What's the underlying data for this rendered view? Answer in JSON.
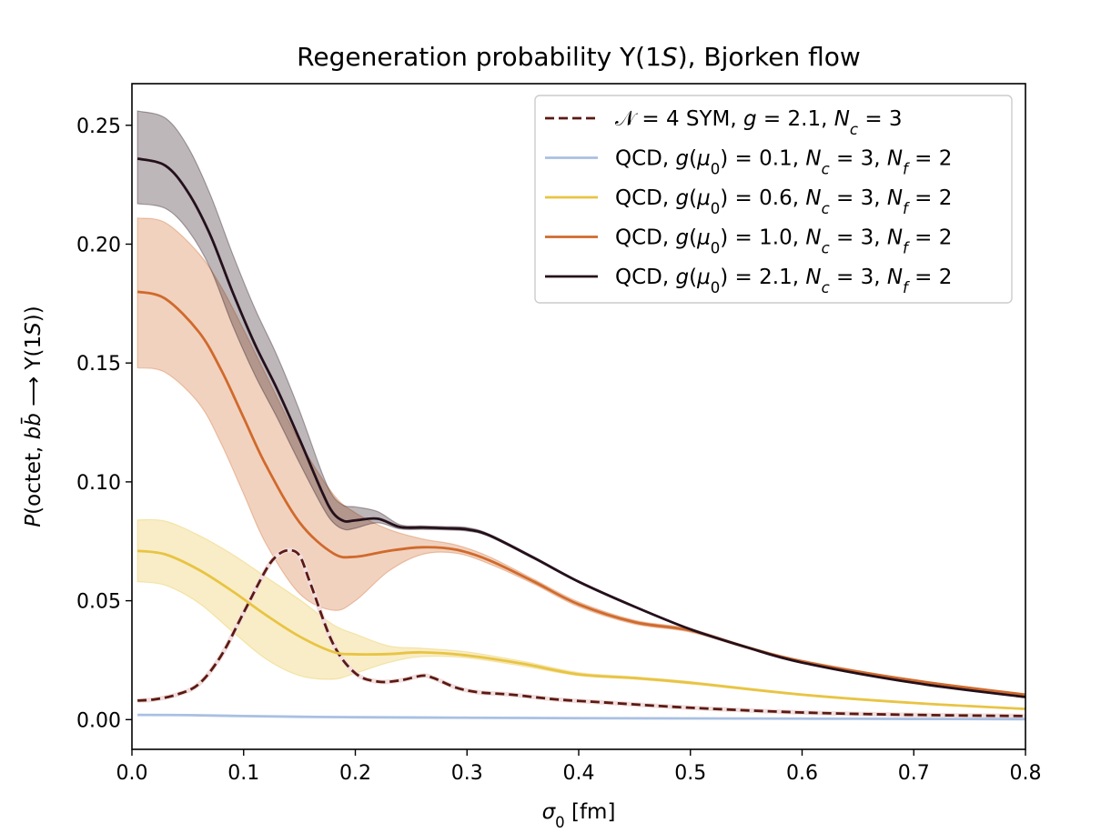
{
  "chart_data": {
    "type": "line",
    "title": "Regeneration probability Υ(1S), Bjorken flow",
    "title_runs": [
      {
        "t": "Regeneration probability Υ(1",
        "i": false
      },
      {
        "t": "S",
        "i": true
      },
      {
        "t": "), Bjorken flow",
        "i": false
      }
    ],
    "xlabel": "σ₀ [fm]",
    "xlabel_runs": [
      {
        "t": "σ",
        "i": true
      },
      {
        "t": "0",
        "i": false,
        "sub": true
      },
      {
        "t": " [fm]",
        "i": false
      }
    ],
    "ylabel": "P(octet, bb̄ ⟶ Υ(1S))",
    "ylabel_runs": [
      {
        "t": "P",
        "i": true
      },
      {
        "t": "(octet, ",
        "i": false
      },
      {
        "t": "b",
        "i": true
      },
      {
        "t": "b̄",
        "i": true
      },
      {
        "t": " ⟶ Υ(1",
        "i": false
      },
      {
        "t": "S",
        "i": true
      },
      {
        "t": "))",
        "i": false
      }
    ],
    "xlim": [
      0,
      0.8
    ],
    "ylim": [
      -0.0125,
      0.2675
    ],
    "xticks": [
      "0.0",
      "0.1",
      "0.2",
      "0.3",
      "0.4",
      "0.5",
      "0.6",
      "0.7",
      "0.8"
    ],
    "xtick_values": [
      0,
      0.1,
      0.2,
      0.3,
      0.4,
      0.5,
      0.6,
      0.7,
      0.8
    ],
    "yticks": [
      "0.00",
      "0.05",
      "0.10",
      "0.15",
      "0.20",
      "0.25"
    ],
    "ytick_values": [
      0,
      0.05,
      0.1,
      0.15,
      0.2,
      0.25
    ],
    "grid": false,
    "legend_position": "top-right",
    "series": [
      {
        "name": "𝒩 = 4 SYM, g = 2.1, N_c = 3",
        "label_runs": [
          {
            "t": "𝒩",
            "i": false
          },
          {
            "t": " = 4 SYM, ",
            "i": false
          },
          {
            "t": "g",
            "i": true
          },
          {
            "t": " = 2.1, ",
            "i": false
          },
          {
            "t": "N",
            "i": true
          },
          {
            "t": "c",
            "i": true,
            "sub": true
          },
          {
            "t": " = 3",
            "i": false
          }
        ],
        "color": "#5a1a12",
        "dashed": true,
        "x": [
          0.005,
          0.02,
          0.04,
          0.06,
          0.08,
          0.1,
          0.12,
          0.13,
          0.14,
          0.15,
          0.16,
          0.18,
          0.2,
          0.22,
          0.24,
          0.26,
          0.27,
          0.29,
          0.31,
          0.34,
          0.38,
          0.42,
          0.5,
          0.6,
          0.7,
          0.8
        ],
        "y": [
          0.008,
          0.0085,
          0.0105,
          0.015,
          0.027,
          0.045,
          0.063,
          0.069,
          0.0712,
          0.069,
          0.057,
          0.032,
          0.0195,
          0.016,
          0.0165,
          0.0185,
          0.0175,
          0.0135,
          0.0115,
          0.0105,
          0.0085,
          0.0073,
          0.005,
          0.003,
          0.002,
          0.0015
        ]
      },
      {
        "name": "QCD, g(μ0) = 0.1, N_c = 3, N_f = 2",
        "label_runs": [
          {
            "t": "QCD, ",
            "i": false
          },
          {
            "t": "g",
            "i": true
          },
          {
            "t": "(",
            "i": false
          },
          {
            "t": "μ",
            "i": true
          },
          {
            "t": "0",
            "i": false,
            "sub": true
          },
          {
            "t": ") = 0.1, ",
            "i": false
          },
          {
            "t": "N",
            "i": true
          },
          {
            "t": "c",
            "i": true,
            "sub": true
          },
          {
            "t": " = 3, ",
            "i": false
          },
          {
            "t": "N",
            "i": true
          },
          {
            "t": "f",
            "i": true,
            "sub": true
          },
          {
            "t": " = 2",
            "i": false
          }
        ],
        "color": "#a9c0e3",
        "dashed": false,
        "x": [
          0.005,
          0.05,
          0.1,
          0.15,
          0.2,
          0.3,
          0.4,
          0.5,
          0.6,
          0.7,
          0.8
        ],
        "y": [
          0.002,
          0.0019,
          0.0015,
          0.0012,
          0.001,
          0.0008,
          0.0006,
          0.0005,
          0.0004,
          0.0003,
          0.0002
        ]
      },
      {
        "name": "QCD, g(μ0) = 0.6, N_c = 3, N_f = 2",
        "label_runs": [
          {
            "t": "QCD, ",
            "i": false
          },
          {
            "t": "g",
            "i": true
          },
          {
            "t": "(",
            "i": false
          },
          {
            "t": "μ",
            "i": true
          },
          {
            "t": "0",
            "i": false,
            "sub": true
          },
          {
            "t": ") = 0.6, ",
            "i": false
          },
          {
            "t": "N",
            "i": true
          },
          {
            "t": "c",
            "i": true,
            "sub": true
          },
          {
            "t": " = 3, ",
            "i": false
          },
          {
            "t": "N",
            "i": true
          },
          {
            "t": "f",
            "i": true,
            "sub": true
          },
          {
            "t": " = 2",
            "i": false
          }
        ],
        "color": "#e8c443",
        "dashed": false,
        "x": [
          0.005,
          0.03,
          0.06,
          0.09,
          0.12,
          0.15,
          0.18,
          0.2,
          0.23,
          0.26,
          0.3,
          0.35,
          0.4,
          0.45,
          0.5,
          0.6,
          0.7,
          0.8
        ],
        "y": [
          0.071,
          0.0695,
          0.063,
          0.054,
          0.044,
          0.035,
          0.0285,
          0.0275,
          0.0276,
          0.0283,
          0.027,
          0.0235,
          0.019,
          0.0175,
          0.0155,
          0.0105,
          0.007,
          0.0045
        ],
        "band_lower": [
          0.058,
          0.0565,
          0.049,
          0.037,
          0.0255,
          0.0185,
          0.017,
          0.0195,
          0.024,
          0.0265,
          0.026,
          0.0225,
          0.0185,
          0.017,
          0.015,
          0.0102,
          0.0068,
          0.0043
        ],
        "band_upper": [
          0.084,
          0.0835,
          0.0775,
          0.0695,
          0.06,
          0.0505,
          0.04,
          0.036,
          0.031,
          0.03,
          0.0285,
          0.0245,
          0.0198,
          0.018,
          0.016,
          0.0108,
          0.0072,
          0.0047
        ]
      },
      {
        "name": "QCD, g(μ0) = 1.0, N_c = 3, N_f = 2",
        "label_runs": [
          {
            "t": "QCD, ",
            "i": false
          },
          {
            "t": "g",
            "i": true
          },
          {
            "t": "(",
            "i": false
          },
          {
            "t": "μ",
            "i": true
          },
          {
            "t": "0",
            "i": false,
            "sub": true
          },
          {
            "t": ") = 1.0, ",
            "i": false
          },
          {
            "t": "N",
            "i": true
          },
          {
            "t": "c",
            "i": true,
            "sub": true
          },
          {
            "t": " = 3, ",
            "i": false
          },
          {
            "t": "N",
            "i": true
          },
          {
            "t": "f",
            "i": true,
            "sub": true
          },
          {
            "t": " = 2",
            "i": false
          }
        ],
        "color": "#d06a2c",
        "dashed": false,
        "x": [
          0.005,
          0.03,
          0.06,
          0.08,
          0.1,
          0.12,
          0.15,
          0.18,
          0.2,
          0.23,
          0.26,
          0.29,
          0.32,
          0.36,
          0.4,
          0.45,
          0.5,
          0.55,
          0.6,
          0.7,
          0.8
        ],
        "y": [
          0.18,
          0.177,
          0.163,
          0.147,
          0.127,
          0.107,
          0.083,
          0.07,
          0.0685,
          0.071,
          0.0725,
          0.0715,
          0.067,
          0.058,
          0.0485,
          0.041,
          0.0375,
          0.0305,
          0.0245,
          0.0165,
          0.0105
        ],
        "band_lower": [
          0.148,
          0.146,
          0.133,
          0.116,
          0.095,
          0.074,
          0.053,
          0.046,
          0.05,
          0.0625,
          0.0695,
          0.07,
          0.0655,
          0.057,
          0.0475,
          0.0402,
          0.0368,
          0.03,
          0.024,
          0.0162,
          0.0103
        ],
        "band_upper": [
          0.211,
          0.209,
          0.196,
          0.182,
          0.164,
          0.145,
          0.117,
          0.095,
          0.087,
          0.08,
          0.076,
          0.0735,
          0.0685,
          0.059,
          0.0495,
          0.0418,
          0.0382,
          0.031,
          0.025,
          0.0168,
          0.0107
        ]
      },
      {
        "name": "QCD, g(μ0) = 2.1, N_c = 3, N_f = 2",
        "label_runs": [
          {
            "t": "QCD, ",
            "i": false
          },
          {
            "t": "g",
            "i": true
          },
          {
            "t": "(",
            "i": false
          },
          {
            "t": "μ",
            "i": true
          },
          {
            "t": "0",
            "i": false,
            "sub": true
          },
          {
            "t": ") = 2.1, ",
            "i": false
          },
          {
            "t": "N",
            "i": true
          },
          {
            "t": "c",
            "i": true,
            "sub": true
          },
          {
            "t": " = 3, ",
            "i": false
          },
          {
            "t": "N",
            "i": true
          },
          {
            "t": "f",
            "i": true,
            "sub": true
          },
          {
            "t": " = 2",
            "i": false
          }
        ],
        "color": "#24101b",
        "dashed": false,
        "x": [
          0.005,
          0.03,
          0.05,
          0.07,
          0.09,
          0.11,
          0.13,
          0.15,
          0.17,
          0.18,
          0.19,
          0.2,
          0.22,
          0.24,
          0.26,
          0.28,
          0.3,
          0.32,
          0.36,
          0.4,
          0.45,
          0.5,
          0.55,
          0.6,
          0.7,
          0.8
        ],
        "y": [
          0.236,
          0.233,
          0.222,
          0.204,
          0.18,
          0.158,
          0.139,
          0.118,
          0.096,
          0.087,
          0.0835,
          0.0838,
          0.0845,
          0.081,
          0.0808,
          0.0805,
          0.08,
          0.0775,
          0.068,
          0.058,
          0.0475,
          0.038,
          0.0305,
          0.024,
          0.0155,
          0.0095
        ],
        "band_lower": [
          0.217,
          0.215,
          0.206,
          0.19,
          0.166,
          0.145,
          0.127,
          0.108,
          0.09,
          0.083,
          0.08,
          0.0805,
          0.0828,
          0.0802,
          0.08,
          0.0798,
          0.0793,
          0.077,
          0.0676,
          0.0577,
          0.0472,
          0.0378,
          0.0303,
          0.0238,
          0.0153,
          0.0093
        ],
        "band_upper": [
          0.256,
          0.253,
          0.241,
          0.221,
          0.196,
          0.173,
          0.153,
          0.13,
          0.104,
          0.094,
          0.09,
          0.0895,
          0.0875,
          0.082,
          0.0815,
          0.0812,
          0.0808,
          0.078,
          0.0685,
          0.0583,
          0.0478,
          0.0382,
          0.0307,
          0.0242,
          0.0157,
          0.0097
        ]
      }
    ]
  }
}
